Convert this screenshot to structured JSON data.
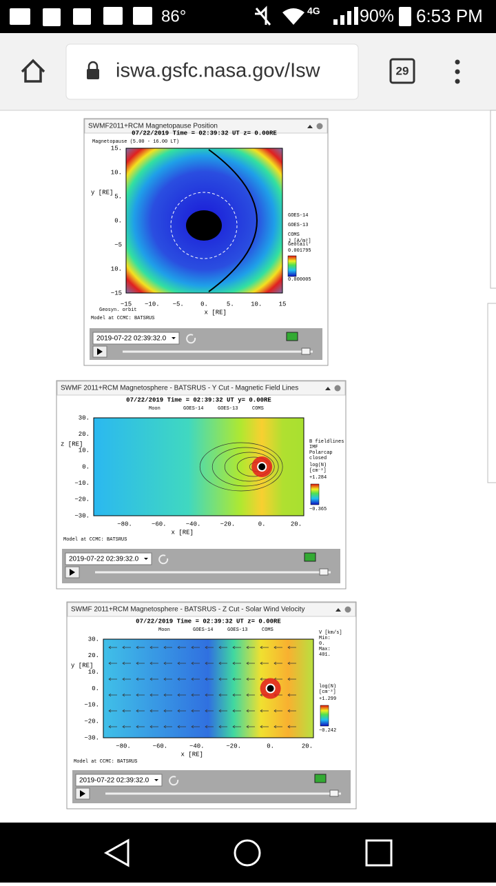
{
  "status_bar": {
    "temperature": "86°",
    "network": "4G",
    "battery": "90%",
    "time": "6:53 PM"
  },
  "browser": {
    "url": "iswa.gsfc.nasa.gov/Isw",
    "tabs": "29"
  },
  "widgets": [
    {
      "title": "SWMF2011+RCM Magnetopause Position",
      "plot_title": "07/22/2019 Time = 02:39:32 UT z= 0.00RE",
      "top_legend": [
        "Magnetopause (5.00 - 16.00 LT)"
      ],
      "y_label": "y [RE]",
      "x_label": "x [RE]",
      "y_ticks": [
        "15.",
        "10.",
        "5.",
        "0.",
        "−5",
        "10.",
        "−15"
      ],
      "x_ticks": [
        "−15",
        "−10.",
        "−5.",
        "0.",
        "5.",
        "10.",
        "15"
      ],
      "side_legend": [
        "GOES-14",
        "GOES-13",
        "COMS",
        "Geotail"
      ],
      "colorbar": [
        "J [A/m²]",
        "0.001795",
        "0.000005"
      ],
      "notes": [
        "Geosyn. orbit"
      ],
      "footer": "Model at CCMC: BATSRUS",
      "time_select": "2019-07-22 02:39:32.0"
    },
    {
      "title": "SWMF 2011+RCM Magnetosphere - BATSRUS - Y Cut - Magnetic Field Lines",
      "plot_title": "07/22/2019 Time = 02:39:32 UT y= 0.00RE",
      "top_legend": [
        "Moon",
        "GOES-14",
        "GOES-13",
        "COMS"
      ],
      "y_label": "z [RE]",
      "x_label": "x [RE]",
      "y_ticks": [
        "30.",
        "20.",
        "10.",
        "0.",
        "−10.",
        "−20.",
        "−30."
      ],
      "x_ticks": [
        "−80.",
        "−60.",
        "−40.",
        "−20.",
        "0.",
        "20."
      ],
      "side_legend": [
        "B fieldlines",
        "IMF",
        "Polarcap",
        "closed"
      ],
      "colorbar": [
        "log(N)",
        "[cm⁻³]",
        "+1.284",
        "−0.365"
      ],
      "notes": [],
      "footer": "Model at CCMC: BATSRUS",
      "time_select": "2019-07-22 02:39:32.0"
    },
    {
      "title": "SWMF 2011+RCM Magnetosphere - BATSRUS - Z Cut - Solar Wind Velocity",
      "plot_title": "07/22/2019 Time = 02:39:32 UT z= 0.00RE",
      "top_legend": [
        "Moon",
        "GOES-14",
        "GOES-13",
        "COMS"
      ],
      "y_label": "y [RE]",
      "x_label": "x [RE]",
      "y_ticks": [
        "30.",
        "20.",
        "10.",
        "0.",
        "−10.",
        "−20.",
        "−30."
      ],
      "x_ticks": [
        "−80.",
        "−60.",
        "−40.",
        "−20.",
        "0.",
        "20."
      ],
      "side_legend": [
        "V [km/s]",
        "Min:",
        "0.",
        "Max:",
        "401."
      ],
      "colorbar": [
        "log(N)",
        "[cm⁻³]",
        "+1.299",
        "−0.242"
      ],
      "notes": [],
      "footer": "Model at CCMC: BATSRUS",
      "time_select": "2019-07-22 02:39:32.0"
    }
  ]
}
